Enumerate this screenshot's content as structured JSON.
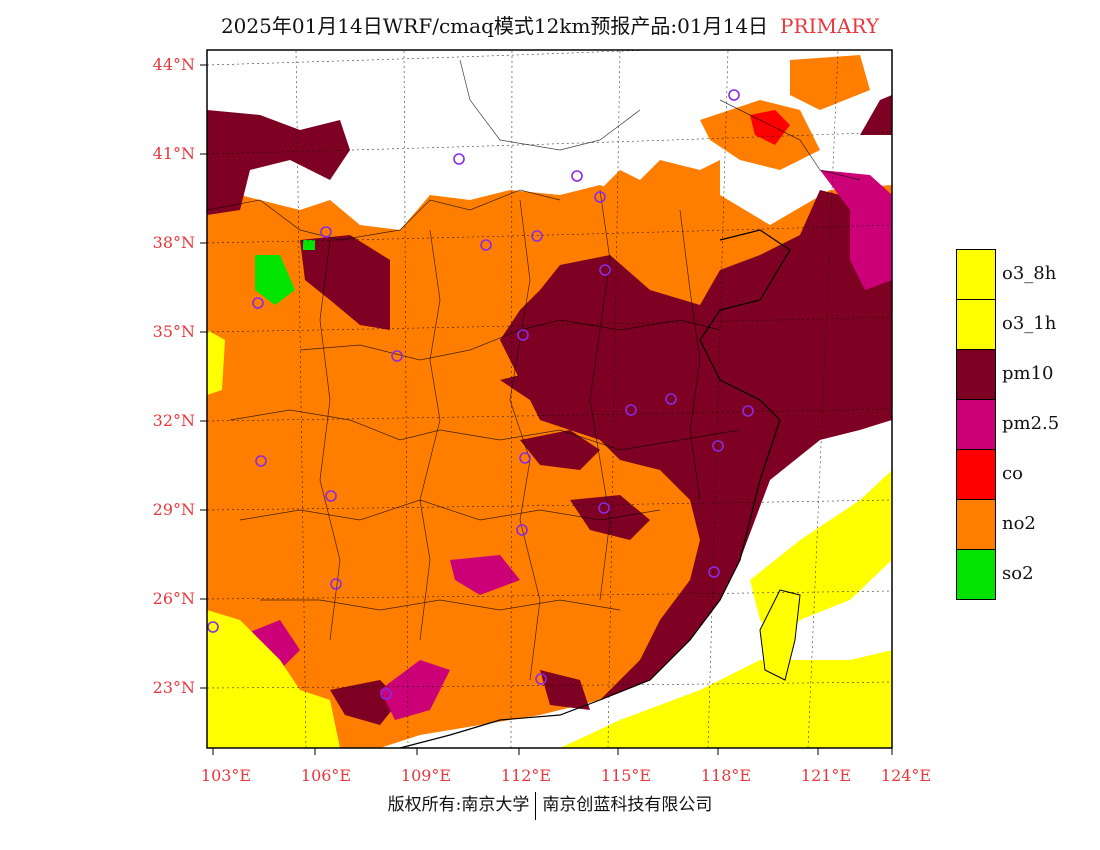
{
  "title": "2025年01月14日WRF/cmaq模式12km预报产品:01月14日",
  "title_tag": "PRIMARY",
  "lat_labels": [
    "44°N",
    "41°N",
    "38°N",
    "35°N",
    "32°N",
    "29°N",
    "26°N",
    "23°N"
  ],
  "lon_labels": [
    "103°E",
    "106°E",
    "109°E",
    "112°E",
    "115°E",
    "118°E",
    "121°E",
    "124°E"
  ],
  "legend": [
    {
      "label": "o3_8h",
      "color": "#ffff00"
    },
    {
      "label": "o3_1h",
      "color": "#ffff00"
    },
    {
      "label": "pm10",
      "color": "#7e0023"
    },
    {
      "label": "pm2.5",
      "color": "#cc0077"
    },
    {
      "label": "co",
      "color": "#ff0000"
    },
    {
      "label": "no2",
      "color": "#ff7e00"
    },
    {
      "label": "so2",
      "color": "#00e400"
    }
  ],
  "footer_left": "版权所有:南京大学",
  "footer_right": "南京创蓝科技有限公司"
}
